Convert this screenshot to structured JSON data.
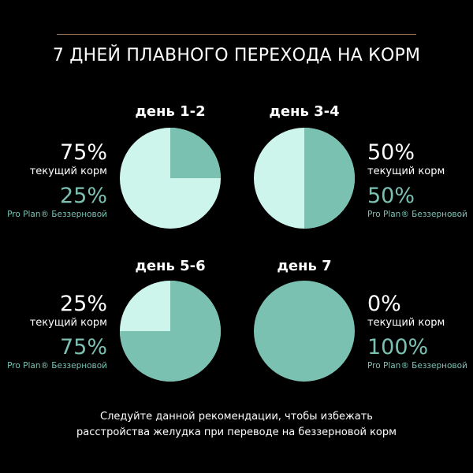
{
  "title": "7 ДНЕЙ ПЛАВНОГО ПЕРЕХОДА НА КОРМ",
  "colors": {
    "current_food": "#cdf5ec",
    "new_food": "#7bc1b2",
    "rule": "#a27d5e",
    "background": "#000000"
  },
  "chart_data": {
    "type": "pie",
    "series_labels": [
      "текущий корм",
      "Pro Plan® Беззерновой"
    ],
    "panels": [
      {
        "day": "день 1-2",
        "current_value": "75%",
        "current_label": "текущий корм",
        "new_value": "25%",
        "new_label": "Pro Plan® Беззерновой",
        "current": 75,
        "new": 25
      },
      {
        "day": "день 3-4",
        "current_value": "50%",
        "current_label": "текущий корм",
        "new_value": "50%",
        "new_label": "Pro Plan® Беззерновой",
        "current": 50,
        "new": 50
      },
      {
        "day": "день 5-6",
        "current_value": "25%",
        "current_label": "текущий корм",
        "new_value": "75%",
        "new_label": "Pro Plan® Беззерновой",
        "current": 25,
        "new": 75
      },
      {
        "day": "день 7",
        "current_value": "0%",
        "current_label": "текущий корм",
        "new_value": "100%",
        "new_label": "Pro Plan® Беззерновой",
        "current": 0,
        "new": 100
      }
    ]
  },
  "footer": {
    "line1": "Следуйте данной рекомендации, чтобы избежать",
    "line2": "расстройства желудка при переводе на беззерновой корм"
  }
}
